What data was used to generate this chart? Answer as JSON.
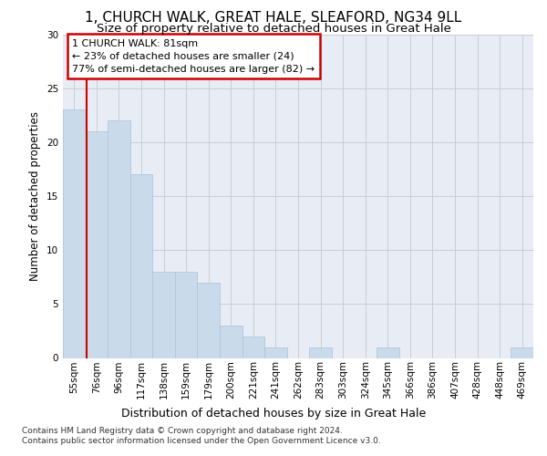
{
  "title": "1, CHURCH WALK, GREAT HALE, SLEAFORD, NG34 9LL",
  "subtitle": "Size of property relative to detached houses in Great Hale",
  "xlabel": "Distribution of detached houses by size in Great Hale",
  "ylabel": "Number of detached properties",
  "categories": [
    "55sqm",
    "76sqm",
    "96sqm",
    "117sqm",
    "138sqm",
    "159sqm",
    "179sqm",
    "200sqm",
    "221sqm",
    "241sqm",
    "262sqm",
    "283sqm",
    "303sqm",
    "324sqm",
    "345sqm",
    "366sqm",
    "386sqm",
    "407sqm",
    "428sqm",
    "448sqm",
    "469sqm"
  ],
  "values": [
    23,
    21,
    22,
    17,
    8,
    8,
    7,
    3,
    2,
    1,
    0,
    1,
    0,
    0,
    1,
    0,
    0,
    0,
    0,
    0,
    1
  ],
  "bar_color": "#c9daea",
  "bar_edge_color": "#afc8dc",
  "annotation_text": "1 CHURCH WALK: 81sqm\n← 23% of detached houses are smaller (24)\n77% of semi-detached houses are larger (82) →",
  "annotation_box_facecolor": "#ffffff",
  "annotation_box_edgecolor": "#cc0000",
  "vline_color": "#cc0000",
  "vline_x": 0.575,
  "ylim": [
    0,
    30
  ],
  "yticks": [
    0,
    5,
    10,
    15,
    20,
    25,
    30
  ],
  "grid_color": "#c8cdd8",
  "bg_color": "#e8edf5",
  "footnote": "Contains HM Land Registry data © Crown copyright and database right 2024.\nContains public sector information licensed under the Open Government Licence v3.0.",
  "title_fontsize": 11,
  "subtitle_fontsize": 9.5,
  "ylabel_fontsize": 8.5,
  "xlabel_fontsize": 9,
  "tick_fontsize": 7.5,
  "annot_fontsize": 8,
  "footnote_fontsize": 6.5
}
